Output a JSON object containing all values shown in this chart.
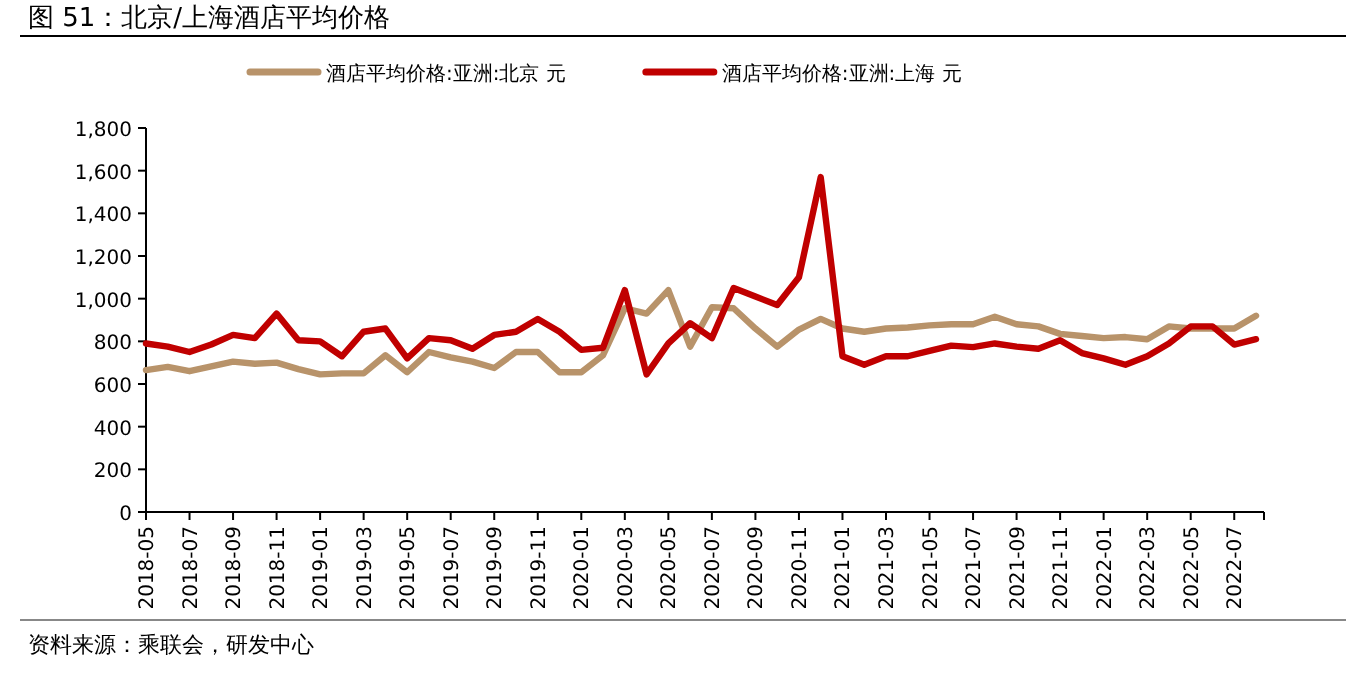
{
  "chart_data": {
    "type": "line",
    "title": "图 51：北京/上海酒店平均价格",
    "categories": [
      "2018-05",
      null,
      "2018-07",
      null,
      "2018-09",
      null,
      "2018-11",
      null,
      "2019-01",
      null,
      "2019-03",
      null,
      "2019-05",
      null,
      "2019-07",
      null,
      "2019-09",
      null,
      "2019-11",
      null,
      "2020-01",
      null,
      "2020-03",
      null,
      "2020-05",
      null,
      "2020-07",
      null,
      "2020-09",
      null,
      "2020-11",
      null,
      "2021-01",
      null,
      "2021-03",
      null,
      "2021-05",
      null,
      "2021-07",
      null,
      "2021-09",
      null,
      "2021-11",
      null,
      "2022-01",
      null,
      "2022-03",
      null,
      "2022-05",
      null,
      "2022-07",
      null
    ],
    "series": [
      {
        "name": "酒店平均价格:亚洲:北京 元",
        "color": "#b8936a",
        "values": [
          665,
          680,
          660,
          683,
          705,
          695,
          700,
          670,
          645,
          650,
          650,
          735,
          655,
          750,
          725,
          705,
          675,
          750,
          750,
          655,
          655,
          735,
          955,
          930,
          1040,
          775,
          960,
          955,
          860,
          775,
          855,
          905,
          860,
          845,
          860,
          865,
          875,
          880,
          880,
          915,
          880,
          870,
          835,
          825,
          815,
          820,
          810,
          870,
          860,
          860,
          860,
          920
        ]
      },
      {
        "name": "酒店平均价格:亚洲:上海 元",
        "color": "#c00000",
        "values": [
          790,
          775,
          750,
          785,
          830,
          815,
          930,
          805,
          800,
          730,
          845,
          860,
          720,
          815,
          805,
          765,
          830,
          845,
          905,
          845,
          760,
          770,
          1040,
          645,
          790,
          885,
          815,
          1050,
          1010,
          970,
          1100,
          1570,
          730,
          690,
          730,
          730,
          755,
          780,
          773,
          790,
          775,
          765,
          805,
          745,
          720,
          690,
          730,
          790,
          870,
          870,
          785,
          810
        ]
      }
    ],
    "ylim": [
      0,
      1800
    ],
    "yticks": [
      0,
      {
        "value": 200,
        "label": "200"
      },
      {
        "value": 400,
        "label": "400"
      },
      {
        "value": 600,
        "label": "600"
      },
      {
        "value": 800,
        "label": "800"
      },
      {
        "value": 1000,
        "label": "1,000"
      },
      {
        "value": 1200,
        "label": "1,200"
      },
      {
        "value": 1400,
        "label": "1,400"
      },
      {
        "value": 1600,
        "label": "1,600"
      },
      {
        "value": 1800,
        "label": "1,800"
      }
    ],
    "legend": "top",
    "grid": false,
    "marker": "none",
    "line_style": "solid",
    "annotations": [
      "资料来源：乘联会，研发中心"
    ]
  }
}
